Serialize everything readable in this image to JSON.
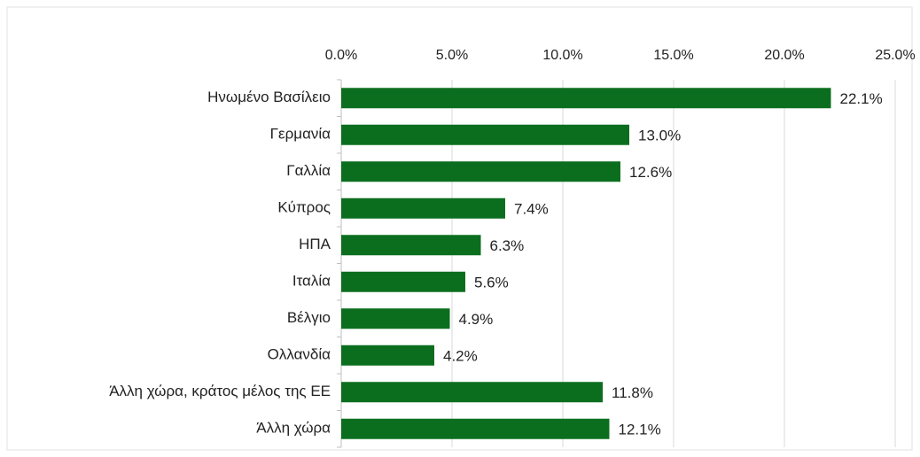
{
  "chart_data": {
    "type": "barh",
    "categories": [
      "Ηνωμένο Βασίλειο",
      "Γερμανία",
      "Γαλλία ",
      "Κύπρος",
      "ΗΠΑ",
      "Ιταλία",
      "Βέλγιο",
      "Ολλανδία",
      "Άλλη χώρα, κράτος μέλος της ΕΕ",
      "Άλλη χώρα"
    ],
    "values": [
      22.1,
      13.0,
      12.6,
      7.4,
      6.3,
      5.6,
      4.9,
      4.2,
      11.8,
      12.1
    ],
    "value_labels": [
      "22.1%",
      "13.0%",
      "12.6%",
      "7.4%",
      "6.3%",
      "5.6%",
      "4.9%",
      "4.2%",
      "11.8%",
      "12.1%"
    ],
    "color": "#0b6e1f",
    "xlim": [
      0,
      25
    ],
    "xticks": [
      {
        "value": 0,
        "label": "0.0%"
      },
      {
        "value": 5,
        "label": "5.0%"
      },
      {
        "value": 10,
        "label": "10.0%"
      },
      {
        "value": 15,
        "label": "15.0%"
      },
      {
        "value": 20,
        "label": "20.0%"
      },
      {
        "value": 25,
        "label": "25.0%"
      }
    ],
    "grid": true
  }
}
